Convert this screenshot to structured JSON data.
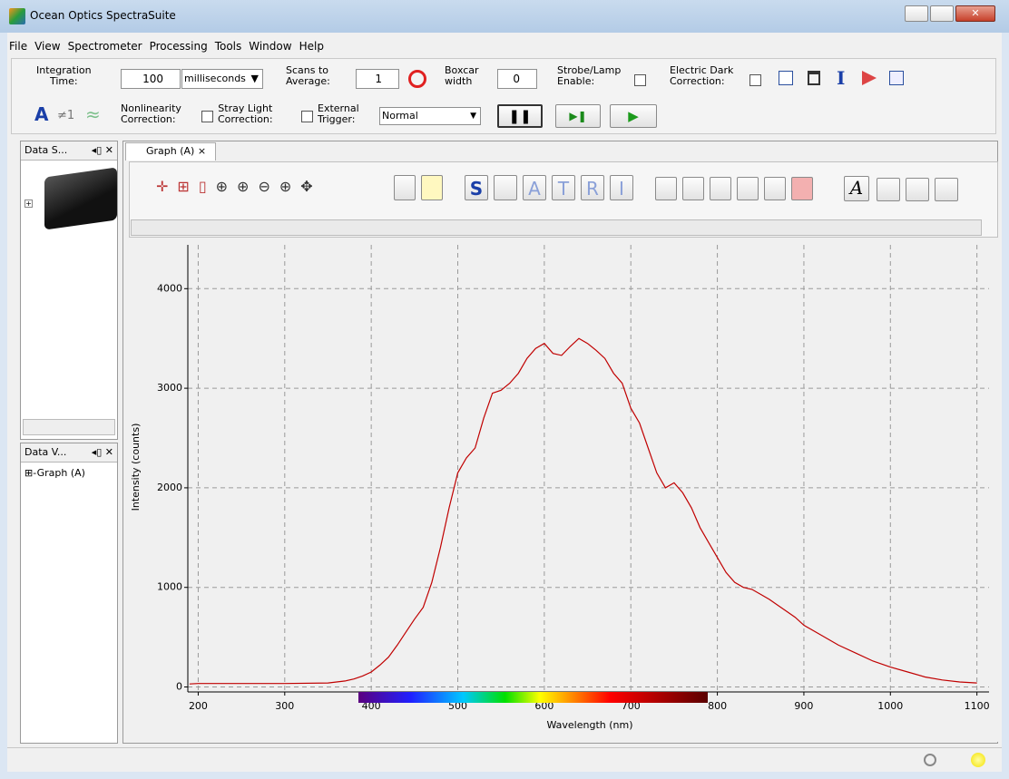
{
  "window": {
    "title": "Ocean Optics SpectraSuite"
  },
  "menu": [
    "File",
    "View",
    "Spectrometer",
    "Processing",
    "Tools",
    "Window",
    "Help"
  ],
  "toolbar": {
    "integration_label": "Integration\nTime:",
    "integration_value": "100",
    "integration_unit": "milliseconds",
    "scans_label": "Scans to\nAverage:",
    "scans_value": "1",
    "boxcar_label": "Boxcar\nwidth",
    "boxcar_value": "0",
    "strobe_label": "Strobe/Lamp\nEnable:",
    "dark_label": "Electric Dark\nCorrection:",
    "mode_a": "A",
    "mode_ne": "≠1",
    "mode_approx": "≈",
    "nonlinearity_label": "Nonlinearity\nCorrection:",
    "stray_label": "Stray Light\nCorrection:",
    "trigger_label": "External\nTrigger:",
    "trigger_value": "Normal"
  },
  "panels": {
    "data_sources": "Data S...",
    "data_views": "Data V...",
    "tree_item": "Graph (A)",
    "tab": "Graph (A)"
  },
  "graph_toolbar": [
    "S",
    "A",
    "T",
    "R",
    "I"
  ],
  "chart_data": {
    "type": "line",
    "xlabel": "Wavelength (nm)",
    "ylabel": "Intensity (counts)",
    "color": "#c00000",
    "grid": true,
    "xlim": [
      188,
      1114
    ],
    "ylim": [
      -50,
      4440
    ],
    "xticks": [
      200,
      300,
      400,
      500,
      600,
      700,
      800,
      900,
      1000,
      1100
    ],
    "yticks": [
      0,
      1000,
      2000,
      3000,
      4000
    ],
    "x": [
      190,
      200,
      250,
      300,
      350,
      370,
      380,
      390,
      400,
      410,
      420,
      430,
      440,
      450,
      460,
      470,
      480,
      490,
      500,
      510,
      520,
      530,
      540,
      550,
      560,
      570,
      580,
      590,
      600,
      610,
      620,
      630,
      640,
      650,
      660,
      670,
      680,
      690,
      700,
      710,
      720,
      730,
      740,
      750,
      760,
      770,
      780,
      790,
      800,
      810,
      820,
      830,
      840,
      850,
      860,
      870,
      880,
      890,
      900,
      920,
      940,
      960,
      980,
      1000,
      1020,
      1040,
      1060,
      1080,
      1100
    ],
    "values": [
      30,
      35,
      35,
      35,
      40,
      60,
      80,
      110,
      150,
      220,
      300,
      420,
      550,
      680,
      800,
      1050,
      1400,
      1800,
      2150,
      2300,
      2400,
      2700,
      2950,
      2980,
      3050,
      3150,
      3300,
      3400,
      3450,
      3350,
      3330,
      3420,
      3500,
      3450,
      3380,
      3300,
      3150,
      3050,
      2800,
      2650,
      2400,
      2150,
      2000,
      2050,
      1950,
      1800,
      1600,
      1450,
      1300,
      1150,
      1050,
      1000,
      980,
      930,
      880,
      820,
      760,
      700,
      620,
      520,
      420,
      340,
      260,
      200,
      150,
      100,
      70,
      50,
      40
    ]
  }
}
